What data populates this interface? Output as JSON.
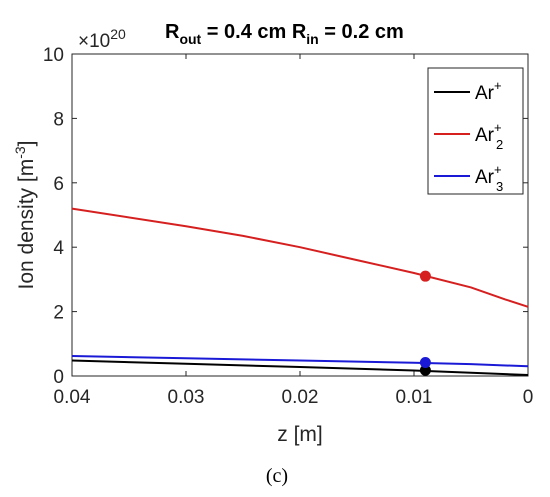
{
  "chart_data": {
    "type": "line",
    "title_parts": {
      "r1": "R",
      "sub1": "out",
      "mid": " = 0.4 cm R",
      "sub2": "in",
      "end": " = 0.2 cm"
    },
    "xlabel": "z [m]",
    "ylabel_main": "Ion density [m",
    "ylabel_sup": "-3",
    "ylabel_close": "]",
    "y_multiplier_base": "×10",
    "y_multiplier_exp": "20",
    "xlim": [
      0.04,
      0
    ],
    "ylim": [
      0,
      10
    ],
    "x_ticks": [
      0.04,
      0.03,
      0.02,
      0.01,
      0
    ],
    "x_tick_labels": [
      "0.04",
      "0.03",
      "0.02",
      "0.01",
      "0"
    ],
    "y_ticks": [
      0,
      2,
      4,
      6,
      8,
      10
    ],
    "y_tick_labels": [
      "0",
      "2",
      "4",
      "6",
      "8",
      "10"
    ],
    "legend_position": "top-right",
    "series": [
      {
        "name_base": "Ar",
        "name_sup": "+",
        "name_sub": "",
        "color": "#000000",
        "x": [
          0.04,
          0.03,
          0.02,
          0.01,
          0.005,
          0
        ],
        "y": [
          0.48,
          0.38,
          0.28,
          0.17,
          0.1,
          0.03
        ],
        "marker": {
          "x": 0.009,
          "y": 0.18
        }
      },
      {
        "name_base": "Ar",
        "name_sup": "+",
        "name_sub": "2",
        "color": "#d62020",
        "x": [
          0.04,
          0.03,
          0.025,
          0.02,
          0.015,
          0.01,
          0.005,
          0.002,
          0
        ],
        "y": [
          5.2,
          4.65,
          4.35,
          4.0,
          3.6,
          3.2,
          2.75,
          2.38,
          2.15
        ],
        "marker": {
          "x": 0.009,
          "y": 3.1
        }
      },
      {
        "name_base": "Ar",
        "name_sup": "+",
        "name_sub": "3",
        "color": "#1a1ad6",
        "x": [
          0.04,
          0.03,
          0.02,
          0.01,
          0.005,
          0
        ],
        "y": [
          0.62,
          0.55,
          0.48,
          0.41,
          0.37,
          0.3
        ],
        "marker": {
          "x": 0.009,
          "y": 0.42
        }
      }
    ]
  },
  "caption": "(c)"
}
